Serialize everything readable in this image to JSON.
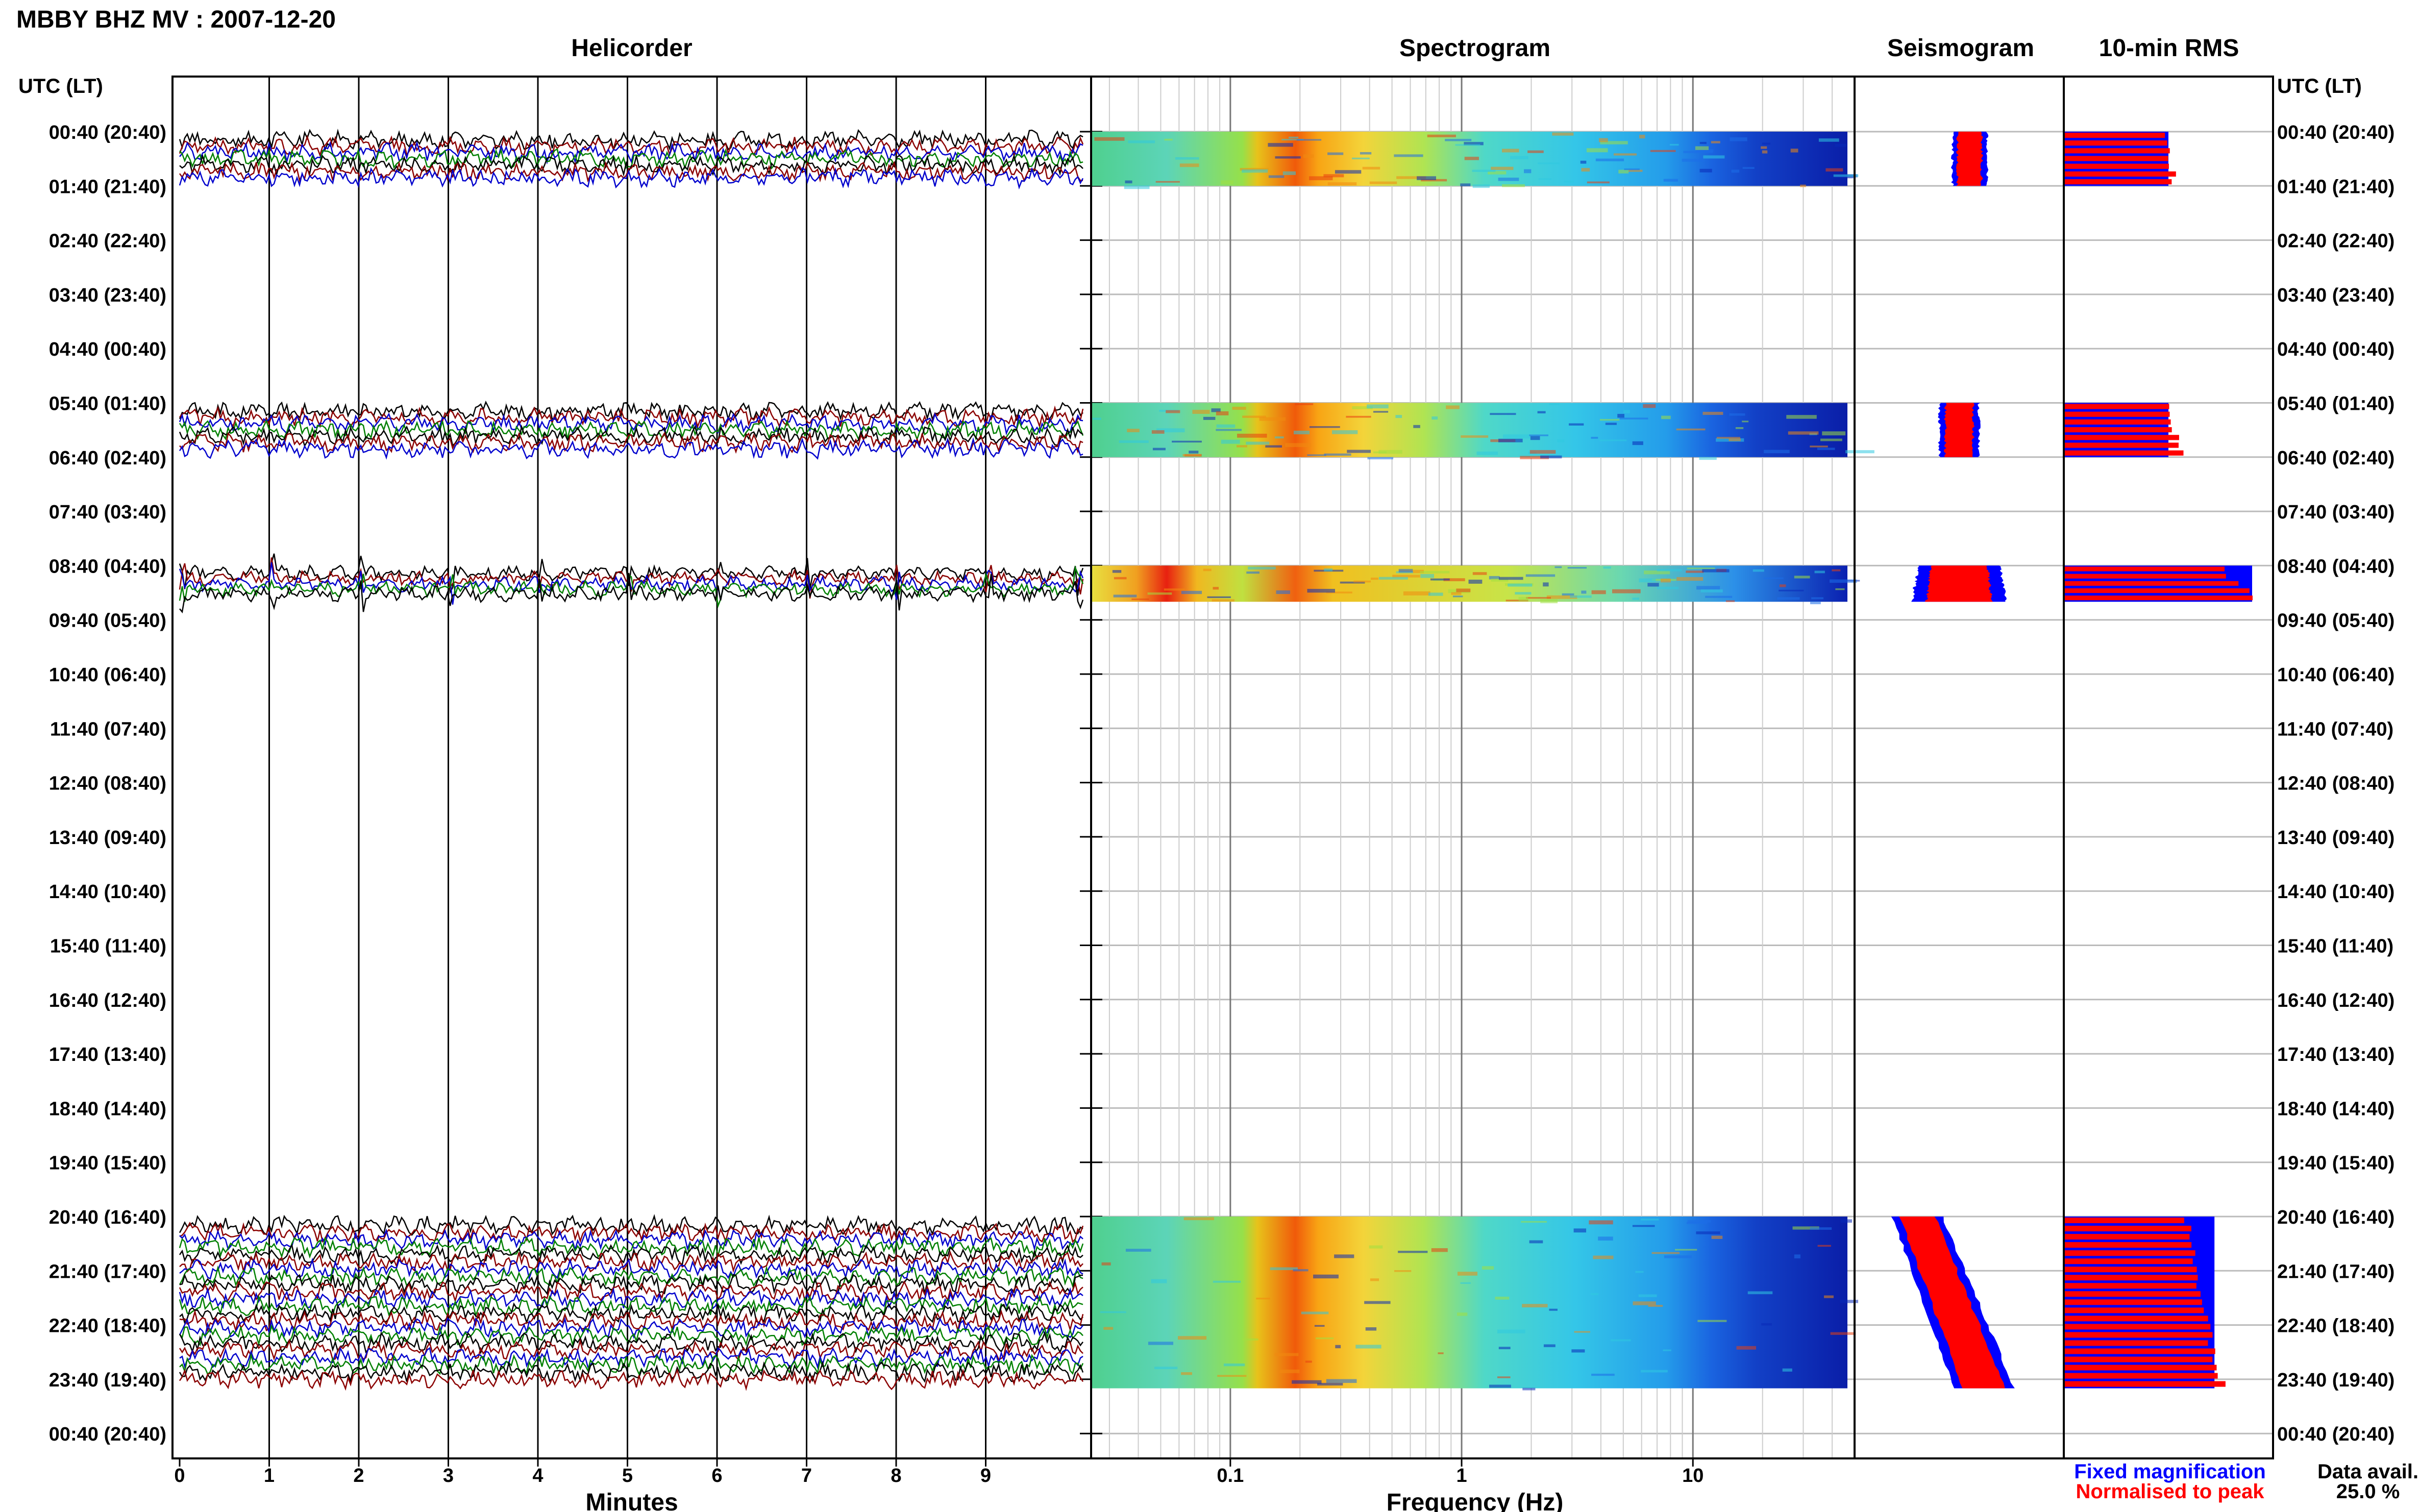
{
  "title": "MBBY BHZ MV : 2007-12-20",
  "panels": {
    "helicorder": "Helicorder",
    "spectrogram": "Spectrogram",
    "seismogram": "Seismogram",
    "rms": "10-min RMS"
  },
  "time_axis_header_left": "UTC (LT)",
  "time_axis_header_right": "UTC (LT)",
  "legend": {
    "fixed": "Fixed magnification",
    "normalised": "Normalised to peak",
    "data_avail_label": "Data avail.",
    "data_avail_value": "25.0 %"
  },
  "colors": {
    "fixed": "#0000ff",
    "normalised": "#ff0000",
    "trace_black": "#000000",
    "trace_red": "#8b0000",
    "trace_blue": "#0000cd",
    "trace_green": "#008000"
  },
  "chart_data": {
    "type": "heatmap",
    "station": "MBBY BHZ MV",
    "date": "2007-12-20",
    "row_labels": [
      "00:40 (20:40)",
      "01:40 (21:40)",
      "02:40 (22:40)",
      "03:40 (23:40)",
      "04:40 (00:40)",
      "05:40 (01:40)",
      "06:40 (02:40)",
      "07:40 (03:40)",
      "08:40 (04:40)",
      "09:40 (05:40)",
      "10:40 (06:40)",
      "11:40 (07:40)",
      "12:40 (08:40)",
      "13:40 (09:40)",
      "14:40 (10:40)",
      "15:40 (11:40)",
      "16:40 (12:40)",
      "17:40 (13:40)",
      "18:40 (14:40)",
      "19:40 (15:40)",
      "20:40 (16:40)",
      "21:40 (17:40)",
      "22:40 (18:40)",
      "23:40 (19:40)",
      "00:40 (20:40)"
    ],
    "helicorder": {
      "xlabel": "Minutes",
      "xticks": [
        "0",
        "1",
        "2",
        "3",
        "4",
        "5",
        "6",
        "7",
        "8",
        "9"
      ],
      "xlim": [
        0,
        10
      ]
    },
    "spectrogram": {
      "xlabel": "Frequency (Hz)",
      "xticks": [
        {
          "value": 0.1,
          "label": "0.1"
        },
        {
          "value": 1,
          "label": "1"
        },
        {
          "value": 10,
          "label": "10"
        }
      ],
      "xlim": [
        0.025,
        50
      ],
      "scale": "log"
    },
    "data_blocks": [
      {
        "start": "00:40",
        "end": "01:40",
        "seis_offset": [
          0.55,
          0.55
        ],
        "seis_width": [
          0.12,
          0.12
        ],
        "rms_fixed": [
          0.5,
          0.5
        ],
        "rms_norm": [
          0.5,
          0.55
        ],
        "events": false
      },
      {
        "start": "05:40",
        "end": "06:40",
        "seis_offset": [
          0.5,
          0.5
        ],
        "seis_width": [
          0.14,
          0.14
        ],
        "rms_fixed": [
          0.5,
          0.5
        ],
        "rms_norm": [
          0.5,
          0.58
        ],
        "events": false
      },
      {
        "start": "08:40",
        "end": "09:20",
        "seis_offset": [
          0.5,
          0.5
        ],
        "seis_width": [
          0.3,
          0.35
        ],
        "rms_fixed": [
          0.9,
          0.9
        ],
        "rms_norm": [
          0.75,
          0.95
        ],
        "events": true
      },
      {
        "start": "20:40",
        "end": "23:50",
        "seis_offset": [
          0.3,
          0.62
        ],
        "seis_width": [
          0.18,
          0.22
        ],
        "rms_fixed": [
          0.65,
          0.72
        ],
        "rms_norm": [
          0.6,
          0.78
        ],
        "events": false
      }
    ]
  }
}
